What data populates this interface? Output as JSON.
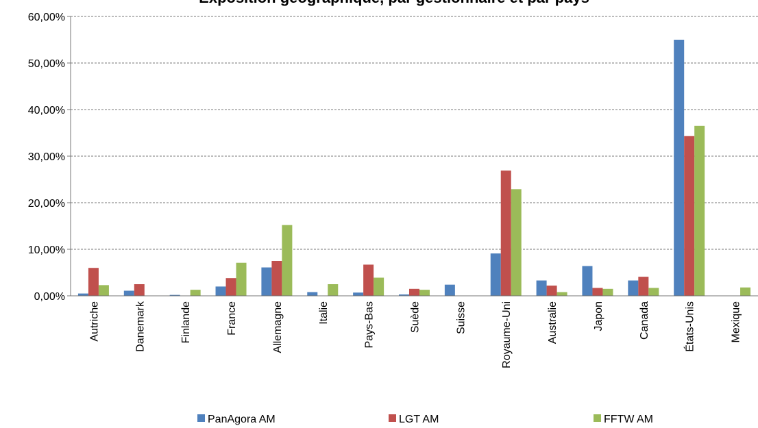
{
  "chart_data": {
    "type": "bar",
    "title": "Exposition géographique, par gestionnaire et par pays",
    "categories": [
      "Autriche",
      "Danemark",
      "Finlande",
      "France",
      "Allemagne",
      "Italie",
      "Pays-Bas",
      "Suède",
      "Suisse",
      "Royaume-Uni",
      "Australie",
      "Japon",
      "Canada",
      "États-Unis",
      "Mexique"
    ],
    "series": [
      {
        "name": "PanAgora AM",
        "color": "#4f81bd",
        "values": [
          0.5,
          1.1,
          0.2,
          2.0,
          6.1,
          0.8,
          0.7,
          0.3,
          2.4,
          9.1,
          3.3,
          6.4,
          3.3,
          55.0,
          0
        ]
      },
      {
        "name": "LGT AM",
        "color": "#c0504d",
        "values": [
          6.0,
          2.5,
          0,
          3.8,
          7.5,
          0,
          6.7,
          1.5,
          0,
          26.9,
          2.2,
          1.7,
          4.1,
          34.3,
          0
        ]
      },
      {
        "name": "FFTW AM",
        "color": "#9bbb59",
        "values": [
          2.3,
          0,
          1.3,
          7.1,
          15.2,
          2.5,
          3.9,
          1.3,
          0,
          22.9,
          0.8,
          1.5,
          1.7,
          36.5,
          1.8
        ]
      }
    ],
    "ylim": [
      0,
      60
    ],
    "yticks": [
      {
        "value": 0,
        "label": "0,00%"
      },
      {
        "value": 10,
        "label": "10,00%"
      },
      {
        "value": 20,
        "label": "20,00%"
      },
      {
        "value": 30,
        "label": "30,00%"
      },
      {
        "value": 40,
        "label": "40,00%"
      },
      {
        "value": 50,
        "label": "50,00%"
      },
      {
        "value": 60,
        "label": "60,00%"
      }
    ],
    "grid": true
  }
}
